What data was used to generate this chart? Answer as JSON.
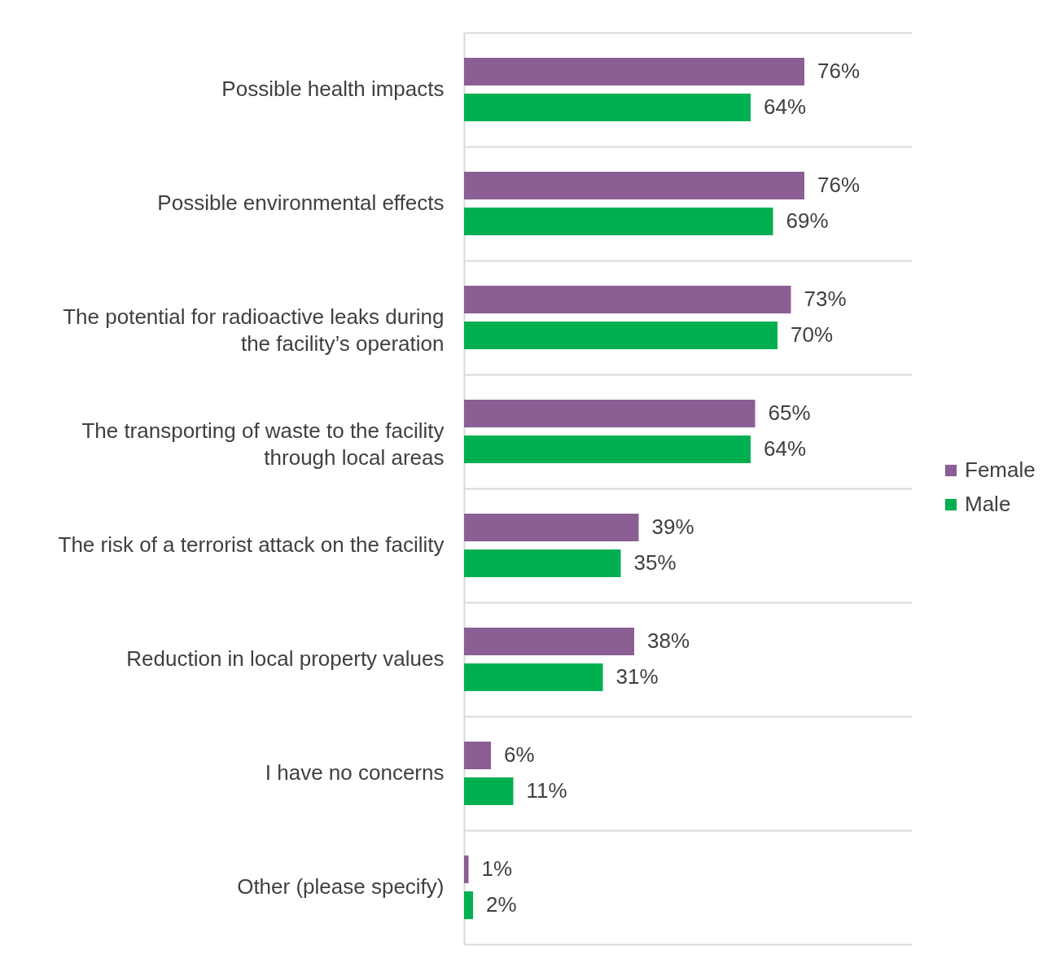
{
  "chart_data": {
    "type": "bar",
    "orientation": "horizontal",
    "categories": [
      "Possible health impacts",
      "Possible environmental effects",
      "The potential for radioactive leaks during\nthe facility’s operation",
      "The transporting of waste to the facility\nthrough local areas",
      "The risk of a terrorist attack on the facility",
      "Reduction in local property values",
      "I have no concerns",
      "Other (please specify)"
    ],
    "series": [
      {
        "name": "Female",
        "color": "#8b5e94",
        "values": [
          76,
          76,
          73,
          65,
          39,
          38,
          6,
          1
        ],
        "value_labels": [
          "76%",
          "76%",
          "73%",
          "65%",
          "39%",
          "38%",
          "6%",
          "1%"
        ]
      },
      {
        "name": "Male",
        "color": "#00b050",
        "values": [
          64,
          69,
          70,
          64,
          35,
          31,
          11,
          2
        ],
        "value_labels": [
          "64%",
          "69%",
          "70%",
          "64%",
          "35%",
          "31%",
          "11%",
          "2%"
        ]
      }
    ],
    "xlim": [
      0,
      100
    ],
    "tick_labels": "y",
    "grid": "y",
    "legend": "right"
  }
}
